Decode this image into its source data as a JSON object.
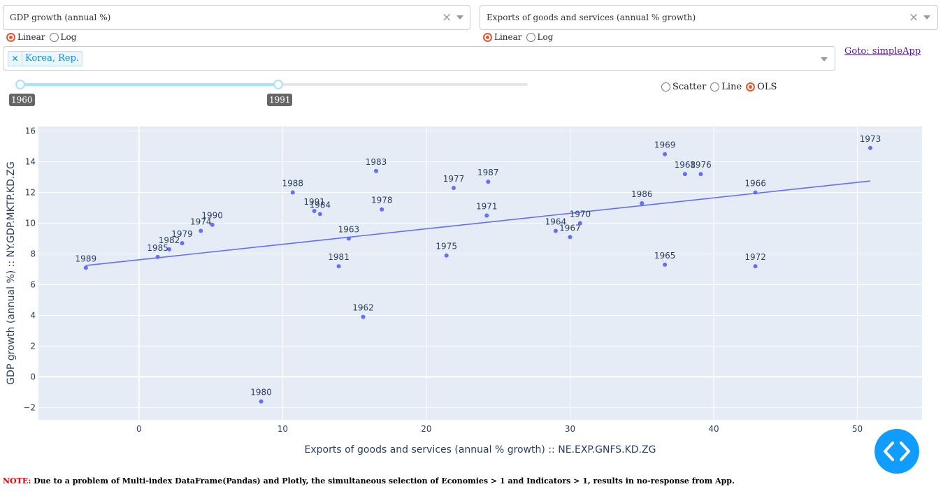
{
  "controls": {
    "y_indicator": "GDP growth (annual %)",
    "x_indicator": "Exports of goods and services (annual % growth)",
    "y_scale_options": [
      "Linear",
      "Log"
    ],
    "y_scale_selected": "Linear",
    "x_scale_options": [
      "Linear",
      "Log"
    ],
    "x_scale_selected": "Linear",
    "economy_tag": "Korea, Rep.",
    "goto_link": "Goto: simpleApp",
    "year_range": {
      "start": "1960",
      "end": "1991",
      "slider_min": 1960,
      "slider_max": 2021
    },
    "mode_options": [
      "Scatter",
      "Line",
      "OLS"
    ],
    "mode_selected": "OLS"
  },
  "chart_data": {
    "type": "scatter",
    "xlabel": "Exports of goods and services (annual % growth) :: NE.EXP.GNFS.KD.ZG",
    "ylabel": "GDP growth (annual %) :: NY.GDP.MKTP.KD.ZG",
    "xlim": [
      -7,
      54.5
    ],
    "ylim": [
      -2.8,
      16.3
    ],
    "xticks": [
      0,
      10,
      20,
      30,
      40,
      50
    ],
    "yticks": [
      -2,
      0,
      2,
      4,
      6,
      8,
      10,
      12,
      14,
      16
    ],
    "grid": true,
    "colors": {
      "plot_bg": "#e5ecf6",
      "marker": "#636efa",
      "line": "#636efa"
    },
    "points": [
      {
        "label": "1962",
        "x": 15.6,
        "y": 3.9
      },
      {
        "label": "1963",
        "x": 14.6,
        "y": 9.0
      },
      {
        "label": "1964",
        "x": 29.0,
        "y": 9.5
      },
      {
        "label": "1965",
        "x": 36.6,
        "y": 7.3
      },
      {
        "label": "1966",
        "x": 42.9,
        "y": 12.0
      },
      {
        "label": "1967",
        "x": 30.0,
        "y": 9.1
      },
      {
        "label": "1968",
        "x": 38.0,
        "y": 13.2
      },
      {
        "label": "1969",
        "x": 36.6,
        "y": 14.5
      },
      {
        "label": "1970",
        "x": 30.7,
        "y": 10.0
      },
      {
        "label": "1971",
        "x": 24.2,
        "y": 10.5
      },
      {
        "label": "1972",
        "x": 42.9,
        "y": 7.2
      },
      {
        "label": "1973",
        "x": 50.9,
        "y": 14.9
      },
      {
        "label": "1974",
        "x": 4.3,
        "y": 9.5
      },
      {
        "label": "1975",
        "x": 21.4,
        "y": 7.9
      },
      {
        "label": "1976",
        "x": 39.1,
        "y": 13.2
      },
      {
        "label": "1977",
        "x": 21.9,
        "y": 12.3
      },
      {
        "label": "1978",
        "x": 16.9,
        "y": 10.9
      },
      {
        "label": "1979",
        "x": 3.0,
        "y": 8.7
      },
      {
        "label": "1980",
        "x": 8.5,
        "y": -1.6
      },
      {
        "label": "1981",
        "x": 13.9,
        "y": 7.2
      },
      {
        "label": "1982",
        "x": 2.1,
        "y": 8.3
      },
      {
        "label": "1983",
        "x": 16.5,
        "y": 13.4
      },
      {
        "label": "1984",
        "x": 12.6,
        "y": 10.6
      },
      {
        "label": "1985",
        "x": 1.3,
        "y": 7.8
      },
      {
        "label": "1986",
        "x": 35.0,
        "y": 11.3
      },
      {
        "label": "1987",
        "x": 24.3,
        "y": 12.7
      },
      {
        "label": "1988",
        "x": 10.7,
        "y": 12.0
      },
      {
        "label": "1989",
        "x": -3.7,
        "y": 7.1
      },
      {
        "label": "1990",
        "x": 5.1,
        "y": 9.9
      },
      {
        "label": "1991",
        "x": 12.2,
        "y": 10.8
      }
    ],
    "trendline": [
      {
        "x": -3.7,
        "y": 7.25
      },
      {
        "x": 50.9,
        "y": 12.75
      }
    ]
  },
  "note": {
    "prefix": "NOTE:",
    "text": "Due to a problem of Multi-index DataFrame(Pandas) and Plotly, the simultaneous selection of Economies > 1 and Indicators > 1, results in no-response from App."
  }
}
